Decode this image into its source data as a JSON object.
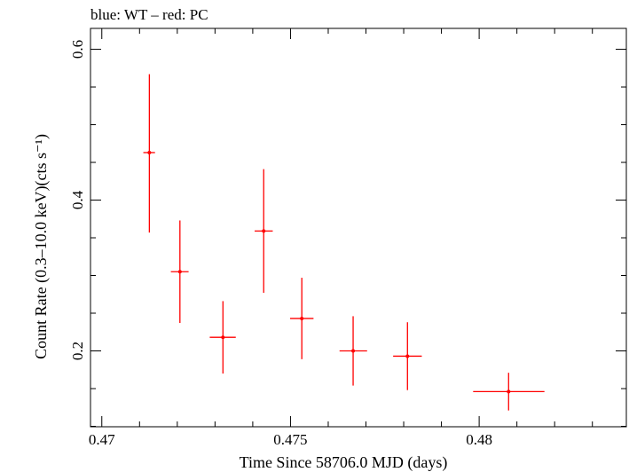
{
  "chart_data": {
    "type": "scatter",
    "title": "blue: WT – red: PC",
    "xlabel": "Time Since 58706.0 MJD (days)",
    "ylabel": "Count Rate (0.3–10.0 keV)(cts s⁻¹)",
    "xlim": [
      0.4697,
      0.4839
    ],
    "ylim": [
      0.0994,
      0.6277
    ],
    "x_ticks": [
      {
        "value": 0.47,
        "label": "0.47"
      },
      {
        "value": 0.475,
        "label": "0.475"
      },
      {
        "value": 0.48,
        "label": "0.48"
      }
    ],
    "y_ticks": [
      {
        "value": 0.2,
        "label": "0.2"
      },
      {
        "value": 0.4,
        "label": "0.4"
      },
      {
        "value": 0.6,
        "label": "0.6"
      }
    ],
    "grid": false,
    "series": [
      {
        "color": "#ff0000",
        "points": [
          {
            "x": 0.47126,
            "xerr_lo": 0.00016,
            "xerr_hi": 0.00015,
            "y": 0.463,
            "yerr_lo": 0.106,
            "yerr_hi": 0.104
          },
          {
            "x": 0.47207,
            "xerr_lo": 0.00024,
            "xerr_hi": 0.00023,
            "y": 0.305,
            "yerr_lo": 0.068,
            "yerr_hi": 0.068
          },
          {
            "x": 0.47321,
            "xerr_lo": 0.00035,
            "xerr_hi": 0.00034,
            "y": 0.218,
            "yerr_lo": 0.048,
            "yerr_hi": 0.048
          },
          {
            "x": 0.47429,
            "xerr_lo": 0.00024,
            "xerr_hi": 0.00024,
            "y": 0.359,
            "yerr_lo": 0.082,
            "yerr_hi": 0.082
          },
          {
            "x": 0.4753,
            "xerr_lo": 0.00031,
            "xerr_hi": 0.00031,
            "y": 0.243,
            "yerr_lo": 0.054,
            "yerr_hi": 0.054
          },
          {
            "x": 0.47666,
            "xerr_lo": 0.00036,
            "xerr_hi": 0.00037,
            "y": 0.2,
            "yerr_lo": 0.046,
            "yerr_hi": 0.046
          },
          {
            "x": 0.4781,
            "xerr_lo": 0.00038,
            "xerr_hi": 0.00038,
            "y": 0.193,
            "yerr_lo": 0.045,
            "yerr_hi": 0.045
          },
          {
            "x": 0.48078,
            "xerr_lo": 0.00094,
            "xerr_hi": 0.00095,
            "y": 0.146,
            "yerr_lo": 0.025,
            "yerr_hi": 0.025
          }
        ]
      }
    ]
  }
}
